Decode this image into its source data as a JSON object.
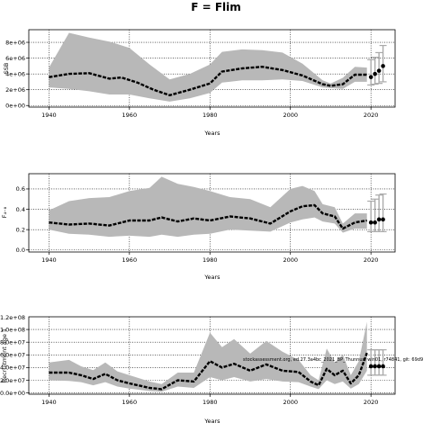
{
  "title": "F = Flim",
  "colors": {
    "band": "#b8b8b8",
    "line": "#000000",
    "proj": "#aaaaaa"
  },
  "chart_data": [
    {
      "type": "line",
      "id": "ssb",
      "ylabel": "SSB",
      "xlabel": "Years",
      "xlim": [
        1935,
        2026
      ],
      "ylim": [
        -200000,
        9600000
      ],
      "xticks": [
        1940,
        1960,
        1980,
        2000,
        2020
      ],
      "yticks": [
        0,
        2000000,
        4000000,
        6000000,
        8000000
      ],
      "ytick_labels": [
        "0e+00",
        "2e+06",
        "4e+06",
        "6e+06",
        "8e+06"
      ],
      "grid": "dotted",
      "series": [
        {
          "role": "median",
          "x": [
            1940,
            1945,
            1950,
            1955,
            1958,
            1962,
            1966,
            1970,
            1975,
            1980,
            1983,
            1988,
            1993,
            1998,
            2003,
            2008,
            2010,
            2013,
            2016,
            2019
          ],
          "y": [
            3600000,
            4000000,
            4100000,
            3400000,
            3550000,
            2900000,
            2000000,
            1300000,
            2000000,
            2800000,
            4300000,
            4700000,
            4900000,
            4500000,
            3800000,
            2700000,
            2500000,
            2700000,
            3900000,
            3900000
          ]
        },
        {
          "role": "upper",
          "x": [
            1940,
            1945,
            1950,
            1955,
            1960,
            1965,
            1970,
            1975,
            1980,
            1983,
            1988,
            1993,
            1998,
            2003,
            2008,
            2010,
            2013,
            2016,
            2019
          ],
          "y": [
            4800000,
            9200000,
            8600000,
            8100000,
            7300000,
            5200000,
            3300000,
            4000000,
            5200000,
            6800000,
            7100000,
            7000000,
            6700000,
            5300000,
            3200000,
            2800000,
            3500000,
            4900000,
            4800000
          ]
        },
        {
          "role": "lower",
          "x": [
            1940,
            1945,
            1950,
            1955,
            1960,
            1965,
            1970,
            1975,
            1980,
            1983,
            1988,
            1993,
            1998,
            2003,
            2008,
            2010,
            2013,
            2016,
            2019
          ],
          "y": [
            2300000,
            2100000,
            1800000,
            1400000,
            1400000,
            900000,
            500000,
            900000,
            1600000,
            2900000,
            3200000,
            3200000,
            3300000,
            3100000,
            2300000,
            2200000,
            2100000,
            3000000,
            3000000
          ]
        },
        {
          "role": "projection",
          "x": [
            2020,
            2021,
            2022,
            2023
          ],
          "y": [
            3600000,
            4000000,
            4400000,
            5000000
          ],
          "lo": [
            2600000,
            2700000,
            2800000,
            3000000
          ],
          "hi": [
            5800000,
            6100000,
            6700000,
            7600000
          ]
        }
      ]
    },
    {
      "type": "line",
      "id": "f",
      "ylabel": "F₄₋₈",
      "xlabel": "Years",
      "xlim": [
        1935,
        2026
      ],
      "ylim": [
        -0.02,
        0.75
      ],
      "xticks": [
        1940,
        1960,
        1980,
        2000,
        2020
      ],
      "yticks": [
        0.0,
        0.2,
        0.4,
        0.6
      ],
      "ytick_labels": [
        "0.0",
        "0.2",
        "0.4",
        "0.6"
      ],
      "grid": "dotted",
      "series": [
        {
          "role": "median",
          "x": [
            1940,
            1945,
            1950,
            1955,
            1960,
            1965,
            1968,
            1972,
            1976,
            1980,
            1985,
            1990,
            1995,
            2000,
            2003,
            2006,
            2008,
            2011,
            2013,
            2016,
            2019
          ],
          "y": [
            0.27,
            0.25,
            0.26,
            0.24,
            0.29,
            0.29,
            0.32,
            0.28,
            0.31,
            0.29,
            0.33,
            0.31,
            0.26,
            0.38,
            0.43,
            0.44,
            0.36,
            0.33,
            0.21,
            0.27,
            0.29
          ]
        },
        {
          "role": "upper",
          "x": [
            1940,
            1945,
            1950,
            1955,
            1960,
            1965,
            1968,
            1972,
            1976,
            1980,
            1985,
            1990,
            1995,
            2000,
            2003,
            2006,
            2008,
            2011,
            2013,
            2016,
            2019
          ],
          "y": [
            0.39,
            0.48,
            0.51,
            0.52,
            0.58,
            0.61,
            0.72,
            0.65,
            0.62,
            0.58,
            0.52,
            0.5,
            0.42,
            0.6,
            0.63,
            0.58,
            0.45,
            0.42,
            0.26,
            0.36,
            0.36
          ]
        },
        {
          "role": "lower",
          "x": [
            1940,
            1945,
            1950,
            1955,
            1960,
            1965,
            1968,
            1972,
            1976,
            1980,
            1985,
            1990,
            1995,
            2000,
            2003,
            2006,
            2008,
            2011,
            2013,
            2016,
            2019
          ],
          "y": [
            0.2,
            0.16,
            0.15,
            0.13,
            0.14,
            0.13,
            0.15,
            0.13,
            0.15,
            0.16,
            0.2,
            0.19,
            0.18,
            0.27,
            0.3,
            0.32,
            0.28,
            0.26,
            0.17,
            0.21,
            0.21
          ]
        },
        {
          "role": "projection",
          "x": [
            2020,
            2021,
            2022,
            2023
          ],
          "y": [
            0.27,
            0.27,
            0.3,
            0.3
          ],
          "lo": [
            0.18,
            0.18,
            0.18,
            0.18
          ],
          "hi": [
            0.48,
            0.5,
            0.54,
            0.55
          ]
        }
      ]
    },
    {
      "type": "line",
      "id": "recruitment",
      "ylabel": "Recruitment age 1",
      "xlabel": "Years",
      "xlim": [
        1935,
        2026
      ],
      "ylim": [
        -2000000,
        120000000
      ],
      "xticks": [
        1940,
        1960,
        1980,
        2000,
        2020
      ],
      "yticks": [
        0,
        20000000,
        40000000,
        60000000,
        80000000,
        100000000
      ],
      "ytick_labels": [
        "0.0e+00",
        "2.0e+07",
        "4.0e+07",
        "6.0e+07",
        "8.0e+07",
        "1.0e+08"
      ],
      "extra_ytick_labels": [
        "1.2e+08"
      ],
      "grid": "dotted",
      "annotation": "stockassessment.org, ed.27.3a4bc_2021_BP_Thunnus, win01, r74841, git: 69d9",
      "series": [
        {
          "role": "median",
          "x": [
            1940,
            1945,
            1948,
            1951,
            1954,
            1957,
            1960,
            1965,
            1968,
            1972,
            1976,
            1980,
            1983,
            1986,
            1990,
            1994,
            1998,
            2002,
            2005,
            2007,
            2009,
            2011,
            2013,
            2015,
            2017,
            2019
          ],
          "y": [
            32000000,
            32000000,
            28000000,
            22000000,
            30000000,
            20000000,
            15000000,
            8000000,
            6000000,
            20000000,
            18000000,
            50000000,
            40000000,
            46000000,
            35000000,
            45000000,
            35000000,
            33000000,
            18000000,
            12000000,
            38000000,
            28000000,
            35000000,
            15000000,
            28000000,
            63000000
          ]
        },
        {
          "role": "upper",
          "x": [
            1940,
            1945,
            1948,
            1951,
            1954,
            1957,
            1960,
            1965,
            1968,
            1972,
            1976,
            1980,
            1983,
            1986,
            1990,
            1994,
            1998,
            2002,
            2005,
            2007,
            2009,
            2011,
            2013,
            2015,
            2017,
            2019
          ],
          "y": [
            48000000,
            52000000,
            42000000,
            36000000,
            48000000,
            34000000,
            28000000,
            18000000,
            14000000,
            32000000,
            32000000,
            95000000,
            72000000,
            85000000,
            62000000,
            82000000,
            65000000,
            52000000,
            28000000,
            20000000,
            70000000,
            48000000,
            60000000,
            28000000,
            50000000,
            112000000
          ]
        },
        {
          "role": "lower",
          "x": [
            1940,
            1945,
            1948,
            1951,
            1954,
            1957,
            1960,
            1965,
            1968,
            1972,
            1976,
            1980,
            1983,
            1986,
            1990,
            1994,
            1998,
            2002,
            2005,
            2007,
            2009,
            2011,
            2013,
            2015,
            2017,
            2019
          ],
          "y": [
            20000000,
            19000000,
            17000000,
            12000000,
            17000000,
            10000000,
            7000000,
            3000000,
            2000000,
            10000000,
            8000000,
            25000000,
            20000000,
            25000000,
            18000000,
            22000000,
            18000000,
            17000000,
            10000000,
            6000000,
            20000000,
            14000000,
            18000000,
            7000000,
            14000000,
            35000000
          ]
        },
        {
          "role": "projection",
          "x": [
            2020,
            2021,
            2022,
            2023
          ],
          "y": [
            42000000,
            42000000,
            42000000,
            42000000
          ],
          "lo": [
            28000000,
            28000000,
            28000000,
            28000000
          ],
          "hi": [
            68000000,
            68000000,
            68000000,
            68000000
          ]
        }
      ]
    }
  ]
}
